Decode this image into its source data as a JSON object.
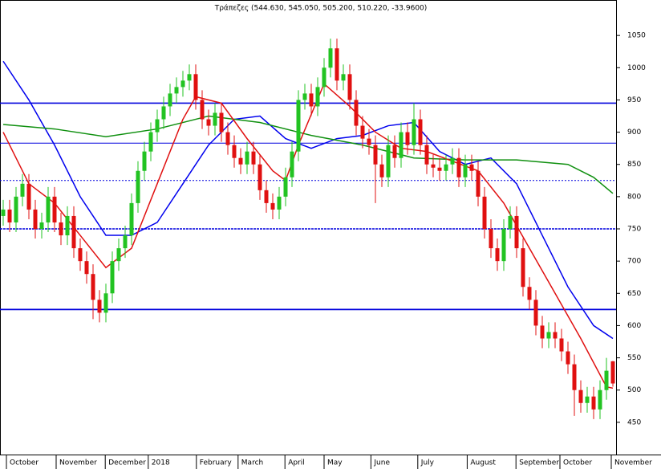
{
  "chart_data": {
    "type": "candlestick",
    "title": "Τράπεζες (544.630, 545.050, 505.200, 510.220, -33.9600)",
    "up_color": "#22c322",
    "down_color": "#e01010",
    "xlim": [
      -0.5,
      95.5
    ],
    "ylim": [
      400,
      1105
    ],
    "yticks": [
      450,
      500,
      550,
      600,
      650,
      700,
      750,
      800,
      850,
      900,
      950,
      1000,
      1050
    ],
    "xticks": [
      {
        "value": 0.5,
        "label": "October"
      },
      {
        "value": 8.25,
        "label": "November"
      },
      {
        "value": 15.9,
        "label": "December"
      },
      {
        "value": 22.6,
        "label": "2018"
      },
      {
        "value": 30.1,
        "label": "February"
      },
      {
        "value": 36.6,
        "label": "March"
      },
      {
        "value": 43.9,
        "label": "April"
      },
      {
        "value": 50,
        "label": "May"
      },
      {
        "value": 57.3,
        "label": "June"
      },
      {
        "value": 64.6,
        "label": "July"
      },
      {
        "value": 72.3,
        "label": "August"
      },
      {
        "value": 79.9,
        "label": "September"
      },
      {
        "value": 86.75,
        "label": "October"
      },
      {
        "value": 94.75,
        "label": "November"
      }
    ],
    "hlines": [
      945,
      883,
      825,
      750,
      625
    ],
    "open": [
      770,
      780,
      760,
      800,
      820,
      780,
      750,
      760,
      800,
      760,
      740,
      770,
      720,
      700,
      680,
      640,
      620,
      650,
      700,
      720,
      740,
      790,
      840,
      870,
      900,
      920,
      940,
      960,
      970,
      980,
      990,
      950,
      920,
      910,
      930,
      900,
      880,
      860,
      850,
      870,
      850,
      810,
      790,
      780,
      800,
      830,
      870,
      950,
      960,
      940,
      970,
      1000,
      1030,
      980,
      990,
      950,
      910,
      890,
      880,
      850,
      830,
      880,
      860,
      900,
      880,
      920,
      880,
      850,
      845,
      840,
      850,
      860,
      830,
      850,
      840,
      800,
      750,
      720,
      700,
      750,
      770,
      720,
      660,
      640,
      600,
      580,
      590,
      580,
      560,
      540,
      500,
      480,
      490,
      470,
      500,
      544.63
    ],
    "high": [
      795,
      795,
      815,
      835,
      835,
      795,
      775,
      815,
      815,
      775,
      785,
      785,
      735,
      715,
      695,
      655,
      665,
      715,
      735,
      755,
      805,
      855,
      885,
      915,
      935,
      955,
      975,
      985,
      995,
      1005,
      1005,
      965,
      935,
      945,
      945,
      915,
      895,
      875,
      885,
      885,
      865,
      825,
      805,
      815,
      845,
      885,
      965,
      975,
      975,
      985,
      1015,
      1045,
      1045,
      1005,
      1005,
      965,
      925,
      905,
      895,
      865,
      895,
      895,
      915,
      915,
      945,
      935,
      895,
      865,
      860,
      865,
      875,
      875,
      865,
      865,
      855,
      815,
      765,
      735,
      765,
      785,
      785,
      735,
      675,
      655,
      615,
      605,
      605,
      595,
      575,
      555,
      515,
      505,
      505,
      515,
      550,
      545.05
    ],
    "low": [
      755,
      745,
      745,
      785,
      765,
      735,
      735,
      745,
      745,
      725,
      725,
      705,
      685,
      665,
      610,
      605,
      605,
      635,
      685,
      705,
      725,
      775,
      825,
      855,
      885,
      905,
      925,
      945,
      955,
      965,
      935,
      905,
      895,
      895,
      885,
      865,
      845,
      835,
      835,
      835,
      795,
      775,
      765,
      765,
      785,
      815,
      855,
      935,
      925,
      925,
      955,
      985,
      965,
      965,
      935,
      895,
      875,
      865,
      790,
      815,
      815,
      845,
      845,
      865,
      865,
      865,
      835,
      830,
      825,
      825,
      835,
      815,
      815,
      825,
      785,
      735,
      705,
      685,
      685,
      735,
      705,
      645,
      625,
      585,
      565,
      565,
      565,
      545,
      525,
      460,
      465,
      465,
      455,
      455,
      485,
      505.2
    ],
    "close": [
      780,
      760,
      800,
      820,
      780,
      750,
      760,
      800,
      760,
      740,
      770,
      720,
      700,
      680,
      640,
      620,
      650,
      700,
      720,
      740,
      790,
      840,
      870,
      900,
      920,
      940,
      960,
      970,
      980,
      990,
      950,
      920,
      910,
      930,
      900,
      880,
      860,
      850,
      870,
      850,
      810,
      790,
      780,
      800,
      830,
      870,
      950,
      960,
      940,
      970,
      1000,
      1030,
      980,
      990,
      950,
      910,
      890,
      880,
      850,
      830,
      880,
      860,
      900,
      880,
      920,
      880,
      850,
      845,
      840,
      850,
      860,
      830,
      850,
      840,
      800,
      750,
      720,
      700,
      750,
      770,
      720,
      660,
      640,
      600,
      580,
      590,
      580,
      560,
      540,
      500,
      480,
      490,
      470,
      500,
      530,
      510.22
    ],
    "lines": [
      {
        "color": "#0000ee",
        "x": [
          0,
          4,
          8,
          12,
          16,
          20,
          24,
          28,
          32,
          36,
          40,
          44,
          48,
          52,
          56,
          60,
          64,
          68,
          72,
          76,
          80,
          84,
          88,
          92,
          95
        ],
        "values": [
          1010,
          950,
          880,
          800,
          740,
          740,
          760,
          820,
          880,
          920,
          925,
          890,
          875,
          890,
          895,
          910,
          915,
          870,
          850,
          860,
          820,
          740,
          660,
          600,
          580
        ]
      },
      {
        "color": "#109010",
        "x": [
          0,
          8,
          16,
          24,
          32,
          40,
          48,
          56,
          64,
          72,
          80,
          88,
          92,
          95
        ],
        "values": [
          912,
          905,
          893,
          905,
          925,
          915,
          895,
          880,
          860,
          857,
          857,
          850,
          830,
          805
        ]
      },
      {
        "color": "#e01010",
        "x": [
          0,
          4,
          8,
          12,
          16,
          20,
          24,
          28,
          30,
          34,
          38,
          42,
          44,
          46,
          50,
          54,
          58,
          62,
          66,
          70,
          74,
          78,
          82,
          86,
          90,
          94,
          95
        ],
        "values": [
          900,
          820,
          790,
          740,
          690,
          720,
          820,
          920,
          955,
          945,
          890,
          840,
          825,
          880,
          975,
          940,
          900,
          875,
          870,
          855,
          840,
          790,
          720,
          650,
          580,
          505,
          503
        ]
      }
    ]
  }
}
